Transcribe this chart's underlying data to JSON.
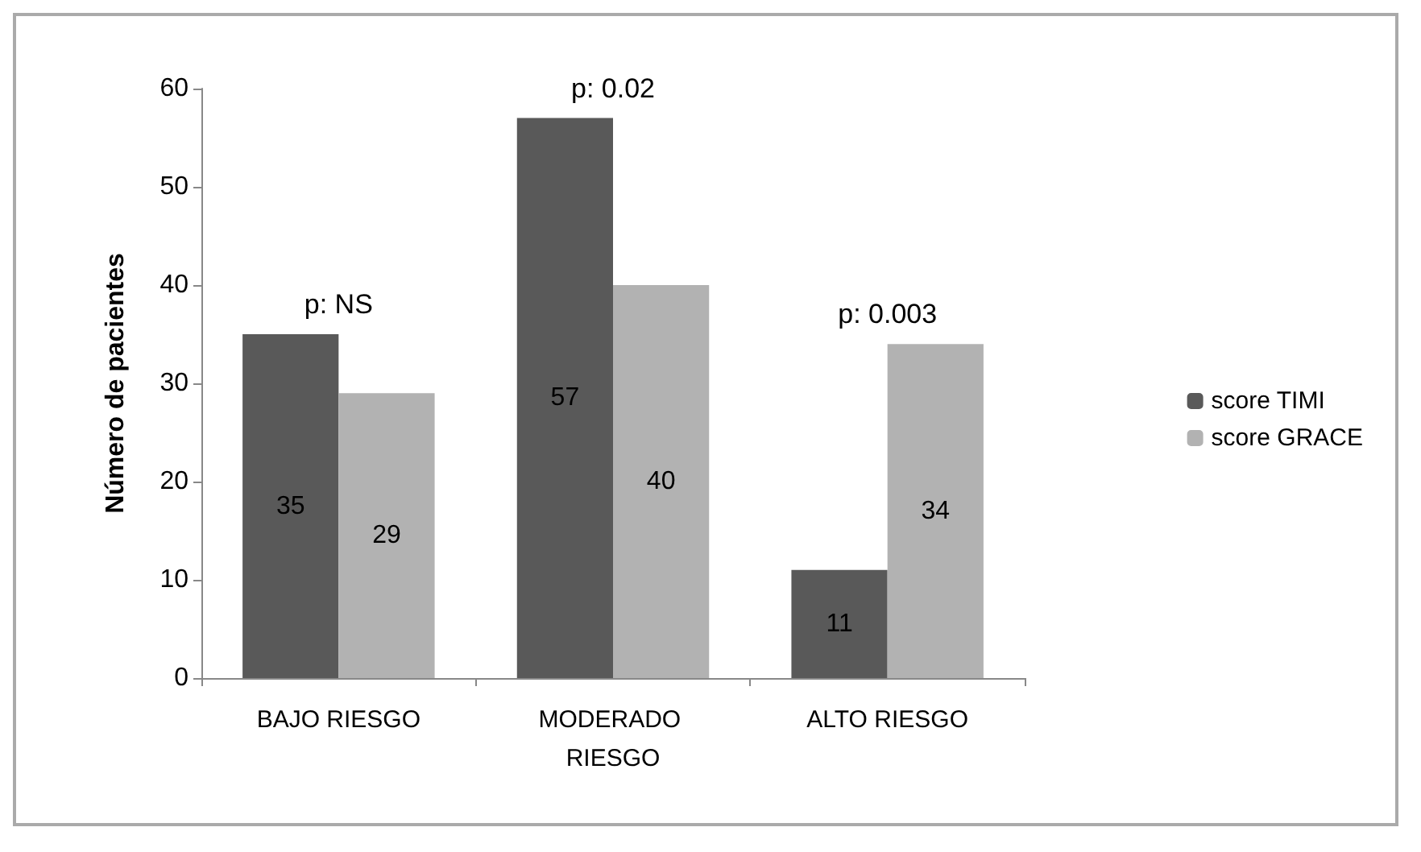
{
  "chart_data": {
    "type": "bar",
    "ylabel": "Número de pacientes",
    "categories": [
      "BAJO RIESGO",
      "MODERADO RIESGO",
      "ALTO RIESGO"
    ],
    "series": [
      {
        "name": "score TIMI",
        "color": "#595959",
        "values": [
          35,
          57,
          11
        ]
      },
      {
        "name": "score GRACE",
        "color": "#b2b2b2",
        "values": [
          29,
          40,
          34
        ]
      }
    ],
    "ylim": [
      0,
      60
    ],
    "yticks": [
      0,
      10,
      20,
      30,
      40,
      50,
      60
    ],
    "grid": false,
    "legend": "right",
    "data_labels": true,
    "annotations": [
      "p: NS",
      "p: 0.02",
      "p: 0.003"
    ]
  }
}
